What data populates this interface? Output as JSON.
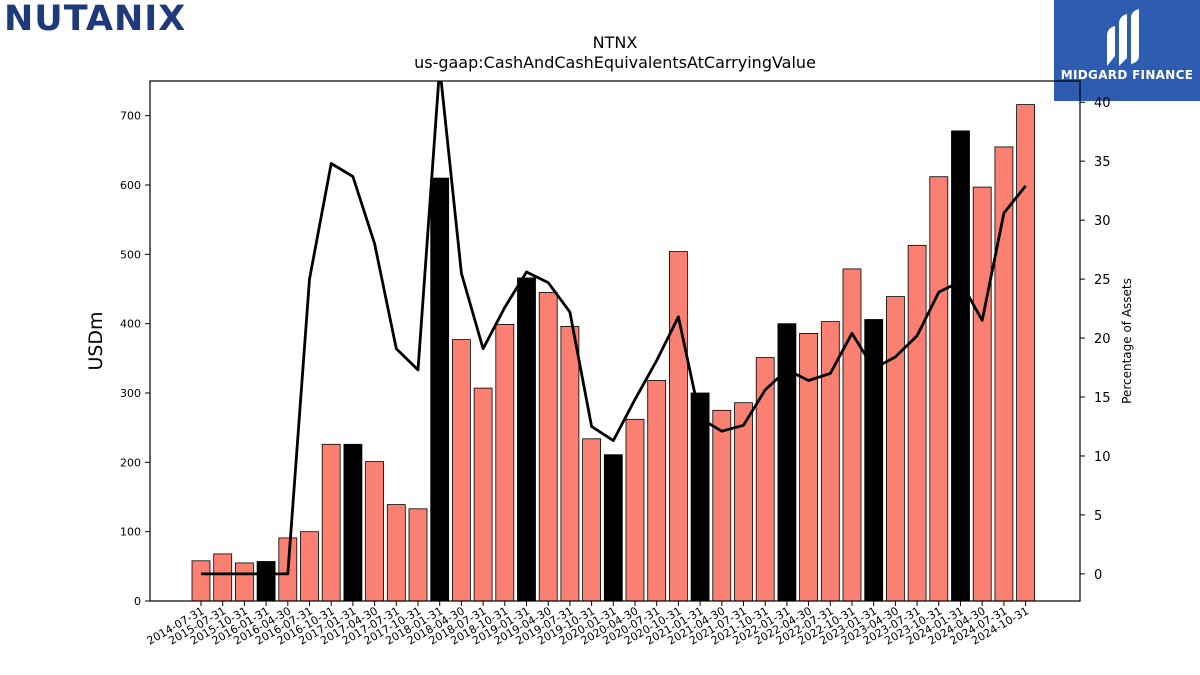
{
  "brand": {
    "left_logo_text": "NUTANIX",
    "right_logo_text": "MIDGARD FINANCE"
  },
  "colors": {
    "bar_default": "#fa8072",
    "bar_highlight": "#000000",
    "line": "#000000",
    "brand_blue": "#2d5cb0",
    "nutanix_navy": "#1f3a7a",
    "nutanix_green": "#9acd32"
  },
  "chart_data": {
    "type": "bar",
    "title": "NTNX",
    "subtitle": "us-gaap:CashAndCashEquivalentsAtCarryingValue",
    "ylabel": "USDm",
    "ylabel_right": "Percentage of Assets",
    "ylim": [
      0,
      750
    ],
    "y2lim": [
      -2.3,
      41.8
    ],
    "yticks": [
      0,
      100,
      200,
      300,
      400,
      500,
      600,
      700
    ],
    "y2ticks": [
      0,
      5,
      10,
      15,
      20,
      25,
      30,
      35,
      40
    ],
    "categories": [
      "2014-07-31",
      "2015-07-31",
      "2015-10-31",
      "2016-01-31",
      "2016-04-30",
      "2016-07-31",
      "2016-10-31",
      "2017-01-31",
      "2017-04-30",
      "2017-07-31",
      "2017-10-31",
      "2018-01-31",
      "2018-04-30",
      "2018-07-31",
      "2018-10-31",
      "2019-01-31",
      "2019-04-30",
      "2019-07-31",
      "2019-10-31",
      "2020-01-31",
      "2020-04-30",
      "2020-07-31",
      "2020-10-31",
      "2021-01-31",
      "2021-04-30",
      "2021-07-31",
      "2021-10-31",
      "2022-01-31",
      "2022-04-30",
      "2022-07-31",
      "2022-10-31",
      "2023-01-31",
      "2023-04-30",
      "2023-07-31",
      "2023-10-31",
      "2024-01-31",
      "2024-04-30",
      "2024-07-31",
      "2024-10-31"
    ],
    "series": [
      {
        "type": "bar",
        "values": [
          58,
          68,
          55,
          57,
          91,
          100,
          226,
          226,
          201,
          139,
          133,
          610,
          377,
          307,
          399,
          466,
          445,
          396,
          234,
          211,
          262,
          318,
          504,
          300,
          275,
          286,
          351,
          400,
          386,
          403,
          479,
          406,
          439,
          513,
          612,
          678,
          597,
          655,
          716
        ],
        "highlight": [
          false,
          false,
          false,
          true,
          false,
          false,
          false,
          true,
          false,
          false,
          false,
          true,
          false,
          false,
          false,
          true,
          false,
          false,
          false,
          true,
          false,
          false,
          false,
          true,
          false,
          false,
          false,
          true,
          false,
          false,
          false,
          true,
          false,
          false,
          false,
          true,
          false,
          false,
          false
        ]
      },
      {
        "type": "line",
        "axis": "right",
        "values": [
          0,
          0,
          0,
          0,
          0,
          25,
          34.8,
          33.7,
          28,
          19.1,
          17.3,
          43,
          25.5,
          19.1,
          22.6,
          25.6,
          24.7,
          22.2,
          12.5,
          11.3,
          14.8,
          18.1,
          21.8,
          13.2,
          12.1,
          12.6,
          15.6,
          17.3,
          16.4,
          17.0,
          20.4,
          17.4,
          18.4,
          20.2,
          23.9,
          24.8,
          21.5,
          30.6,
          32.9
        ]
      }
    ]
  }
}
